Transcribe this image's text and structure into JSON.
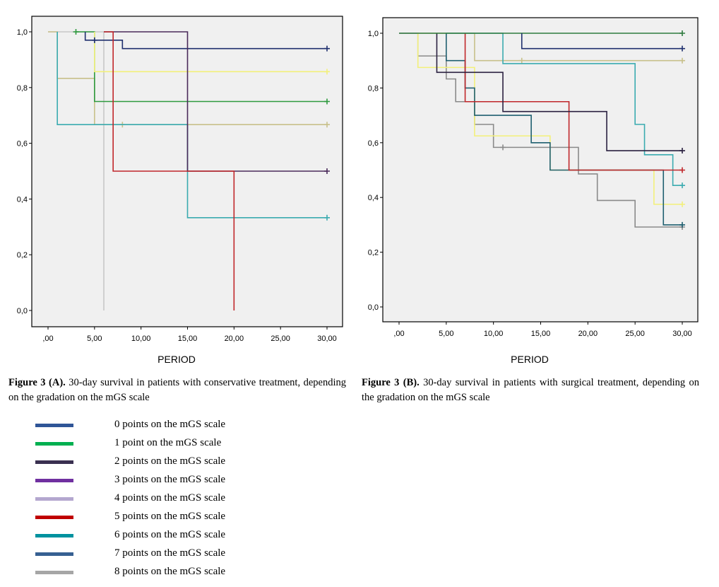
{
  "chart_data": [
    {
      "type": "line",
      "title": "",
      "xlabel": "PERIOD",
      "ylabel": "",
      "xlim": [
        0,
        30
      ],
      "ylim": [
        0,
        1
      ],
      "xticks": [
        ",00",
        "5,00",
        "10,00",
        "15,00",
        "20,00",
        "25,00",
        "30,00"
      ],
      "yticks": [
        "0,0",
        "0,2",
        "0,4",
        "0,6",
        "0,8",
        "1,0"
      ],
      "series": [
        {
          "name": "light gray",
          "color": "#c8c8c8",
          "start": 0,
          "end": 6,
          "steps": [
            [
              6,
              0
            ]
          ],
          "censor": []
        },
        {
          "name": "tan",
          "color": "#c8c08a",
          "start": 0,
          "end": 30,
          "steps": [
            [
              1,
              0.833
            ],
            [
              5,
              0.667
            ]
          ],
          "censor": [
            8,
            30
          ]
        },
        {
          "name": "teal",
          "color": "#3aabb0",
          "start": 1,
          "end": 30,
          "steps": [
            [
              1,
              0.667
            ],
            [
              15,
              0.333
            ]
          ],
          "censor": [
            30
          ]
        },
        {
          "name": "green",
          "color": "#2e9a3e",
          "start": 3,
          "end": 30,
          "steps": [
            [
              5,
              0.75
            ]
          ],
          "censor": [
            3,
            30
          ]
        },
        {
          "name": "yellow",
          "color": "#f2f07a",
          "start": 5,
          "end": 30,
          "steps": [
            [
              5,
              0.857
            ]
          ],
          "censor": [
            30
          ]
        },
        {
          "name": "navy",
          "color": "#1f2f6e",
          "start": 4,
          "end": 30,
          "steps": [
            [
              4,
              0.97
            ],
            [
              8,
              0.94
            ]
          ],
          "censor": [
            5,
            30
          ]
        },
        {
          "name": "dark purple",
          "color": "#4a2a5a",
          "start": 6,
          "end": 30,
          "steps": [
            [
              15,
              0.5
            ]
          ],
          "censor": [
            30
          ]
        },
        {
          "name": "red",
          "color": "#c0262a",
          "start": 6,
          "end": 20,
          "steps": [
            [
              7,
              0.5
            ],
            [
              20,
              0
            ]
          ],
          "censor": []
        }
      ]
    },
    {
      "type": "line",
      "title": "",
      "xlabel": "PERIOD",
      "ylabel": "",
      "xlim": [
        0,
        30
      ],
      "ylim": [
        0,
        1
      ],
      "xticks": [
        ",00",
        "5,00",
        "10,00",
        "15,00",
        "20,00",
        "25,00",
        "30,00"
      ],
      "yticks": [
        "0,0",
        "0,2",
        "0,4",
        "0,6",
        "0,8",
        "1,0"
      ],
      "series": [
        {
          "name": "gray",
          "color": "#8a8a8a",
          "start": 0,
          "end": 30,
          "steps": [
            [
              2,
              0.917
            ],
            [
              5,
              0.833
            ],
            [
              6,
              0.75
            ],
            [
              8,
              0.667
            ],
            [
              10,
              0.583
            ],
            [
              19,
              0.486
            ],
            [
              21,
              0.389
            ],
            [
              25,
              0.292
            ]
          ],
          "censor": [
            11,
            30
          ]
        },
        {
          "name": "yellow",
          "color": "#f2f07a",
          "start": 2,
          "end": 30,
          "steps": [
            [
              2,
              0.875
            ],
            [
              8,
              0.625
            ],
            [
              16,
              0.5
            ],
            [
              27,
              0.375
            ]
          ],
          "censor": [
            30
          ]
        },
        {
          "name": "tan",
          "color": "#c8c08a",
          "start": 2,
          "end": 30,
          "steps": [
            [
              8,
              0.9
            ]
          ],
          "censor": [
            13,
            30
          ]
        },
        {
          "name": "teal",
          "color": "#3aabb0",
          "start": 5,
          "end": 30,
          "steps": [
            [
              11,
              0.889
            ],
            [
              25,
              0.667
            ],
            [
              26,
              0.556
            ],
            [
              29,
              0.444
            ]
          ],
          "censor": [
            30
          ]
        },
        {
          "name": "dark teal",
          "color": "#1f5f70",
          "start": 5,
          "end": 30,
          "steps": [
            [
              5,
              0.9
            ],
            [
              7,
              0.8
            ],
            [
              8,
              0.7
            ],
            [
              14,
              0.6
            ],
            [
              16,
              0.5
            ],
            [
              28,
              0.3
            ]
          ],
          "censor": [
            30
          ]
        },
        {
          "name": "red",
          "color": "#c0262a",
          "start": 7,
          "end": 30,
          "steps": [
            [
              7,
              0.75
            ],
            [
              18,
              0.5
            ]
          ],
          "censor": [
            30
          ]
        },
        {
          "name": "dark",
          "color": "#2a2040",
          "start": 4,
          "end": 30,
          "steps": [
            [
              4,
              0.857
            ],
            [
              11,
              0.714
            ],
            [
              22,
              0.571
            ]
          ],
          "censor": [
            30
          ]
        },
        {
          "name": "dark green",
          "color": "#2e7a3e",
          "start": 0,
          "end": 30,
          "steps": [],
          "censor": [
            30
          ]
        },
        {
          "name": "navy",
          "color": "#1f2f6e",
          "start": 13,
          "end": 30,
          "steps": [
            [
              13,
              0.944
            ]
          ],
          "censor": [
            30
          ]
        }
      ]
    }
  ],
  "captions": {
    "a_label": "Figure 3 (A).",
    "a_text": "  30-day survival in patients with conservative treatment, depending on the gradation on the mGS scale",
    "b_label": "Figure 3 (B).",
    "b_text": "  30-day survival in patients with surgical treatment, depending on the gradation on the mGS scale"
  },
  "legend": [
    {
      "label": "0 points on the mGS scale",
      "color": "#2f5597"
    },
    {
      "label": "1 point on the mGS scale",
      "color": "#00b050"
    },
    {
      "label": "2 points on the mGS scale",
      "color": "#3a3050"
    },
    {
      "label": "3 points on the mGS scale",
      "color": "#7030a0"
    },
    {
      "label": "4 points on the mGS scale",
      "color": "#b4a7cf"
    },
    {
      "label": "5 points on the mGS scale",
      "color": "#c00000"
    },
    {
      "label": "6 points on the mGS scale",
      "color": "#00929f"
    },
    {
      "label": "7 points on the mGS scale",
      "color": "#376092"
    },
    {
      "label": "8 points on the mGS scale",
      "color": "#a6a6a6"
    }
  ]
}
